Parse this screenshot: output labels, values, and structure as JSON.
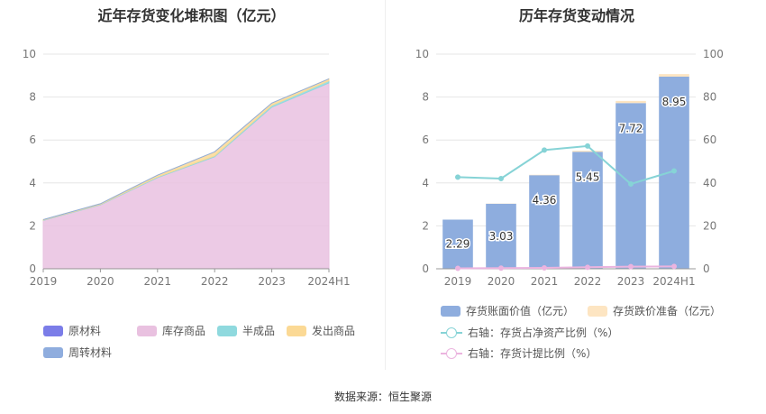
{
  "chart_data": [
    {
      "type": "area",
      "stacked": true,
      "title": "近年存货变化堆积图（亿元）",
      "categories": [
        "2019",
        "2020",
        "2021",
        "2022",
        "2023",
        "2024H1"
      ],
      "ylim": [
        0,
        10
      ],
      "yticks": [
        "0",
        "2",
        "4",
        "6",
        "8",
        "10"
      ],
      "grid": true,
      "series": [
        {
          "name": "原材料",
          "color": "#7b7de8",
          "values": [
            0.02,
            0.02,
            0.02,
            0.02,
            0.03,
            0.03
          ]
        },
        {
          "name": "库存商品",
          "color": "#e9c1e0",
          "values": [
            2.23,
            2.96,
            4.23,
            5.2,
            7.5,
            8.63
          ]
        },
        {
          "name": "半成品",
          "color": "#8fd9de",
          "values": [
            0.02,
            0.02,
            0.03,
            0.04,
            0.08,
            0.1
          ]
        },
        {
          "name": "发出商品",
          "color": "#fbd995",
          "values": [
            0.02,
            0.03,
            0.08,
            0.19,
            0.11,
            0.09
          ]
        },
        {
          "name": "周转材料",
          "color": "#8fadde",
          "values": [
            0.0,
            0.0,
            0.0,
            0.0,
            0.0,
            0.0
          ]
        }
      ]
    },
    {
      "type": "bar",
      "title": "历年存货变动情况",
      "categories": [
        "2019",
        "2020",
        "2021",
        "2022",
        "2023",
        "2024H1"
      ],
      "ylim": [
        0,
        10
      ],
      "y2lim": [
        0,
        100
      ],
      "yticks": [
        "0",
        "2",
        "4",
        "6",
        "8",
        "10"
      ],
      "y2ticks": [
        "0",
        "20",
        "40",
        "60",
        "80",
        "100"
      ],
      "series": [
        {
          "name": "存货账面价值（亿元）",
          "type": "bar",
          "axis": "left",
          "color": "#8eadde",
          "values": [
            2.29,
            3.03,
            4.36,
            5.45,
            7.72,
            8.95
          ],
          "labels": [
            "2.29",
            "3.03",
            "4.36",
            "5.45",
            "7.72",
            "8.95"
          ]
        },
        {
          "name": "存货跌价准备（亿元）",
          "type": "bar",
          "axis": "left",
          "color": "#fde5c2",
          "values": [
            0.0,
            0.01,
            0.02,
            0.05,
            0.1,
            0.12
          ]
        },
        {
          "name": "右轴：存货占净资产比例（%）",
          "type": "line",
          "axis": "right",
          "color": "#86d3d6",
          "values": [
            42.7,
            42.0,
            55.3,
            57.2,
            39.5,
            45.6
          ]
        },
        {
          "name": "右轴：存货计提比例（%）",
          "type": "line",
          "axis": "right",
          "color": "#ebb4df",
          "values": [
            0.2,
            0.3,
            0.4,
            0.7,
            1.0,
            1.1
          ]
        }
      ]
    }
  ],
  "source": "数据来源：恒生聚源"
}
